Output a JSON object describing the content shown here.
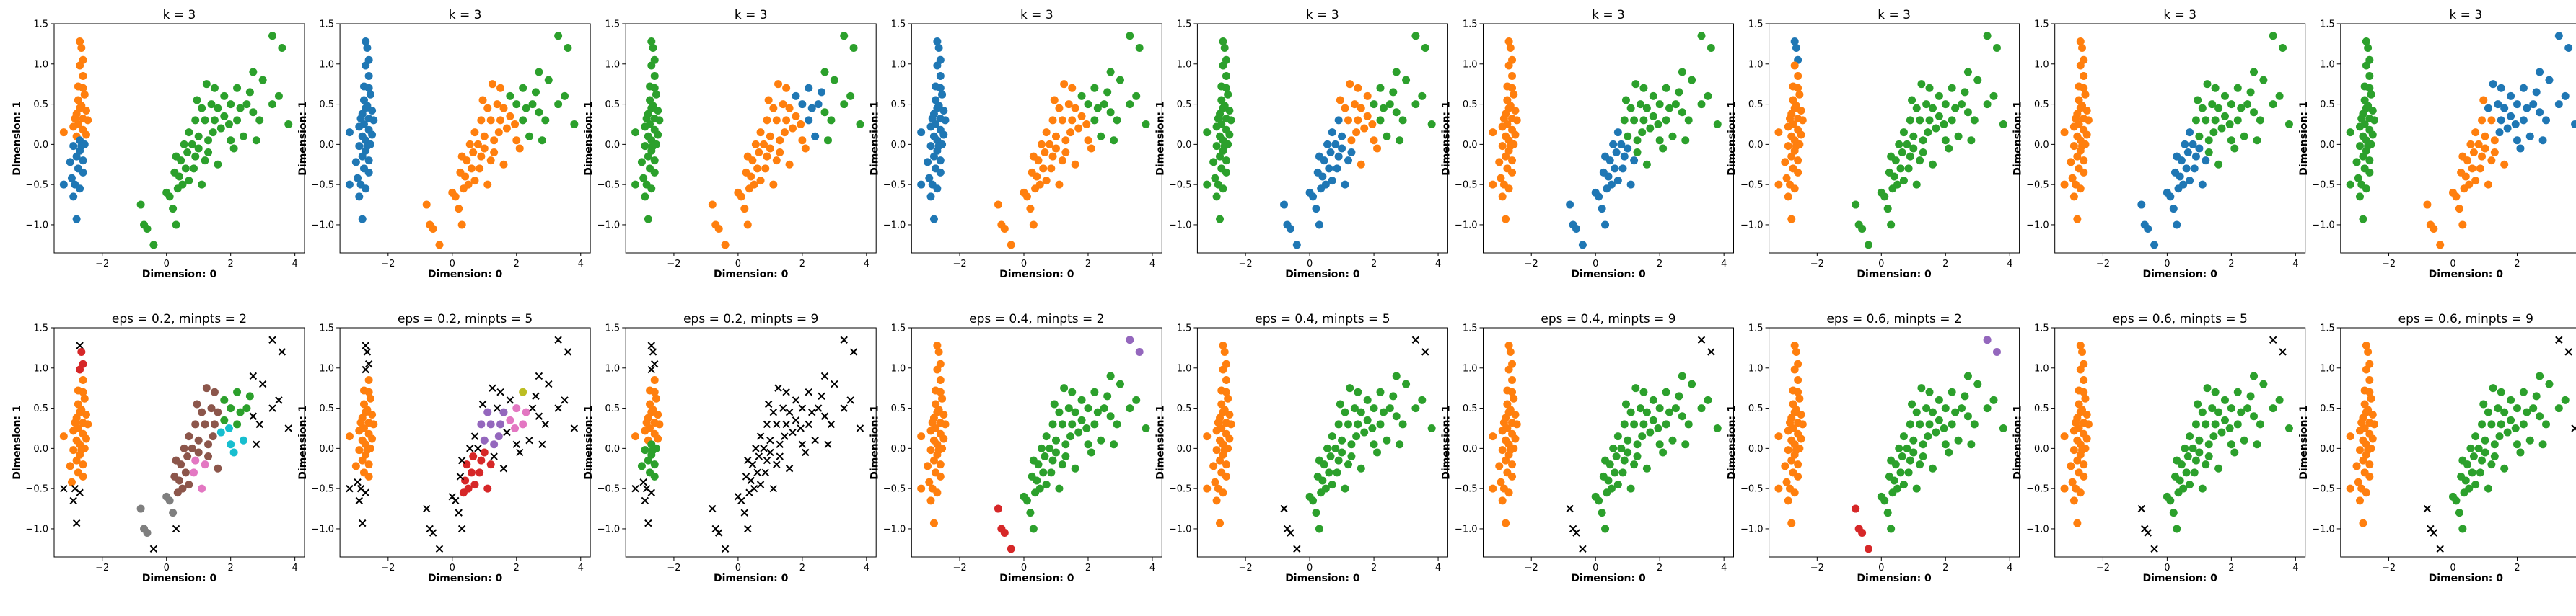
{
  "figure": {
    "xlim": [
      -3.5,
      4.3
    ],
    "ylim": [
      -1.35,
      1.5
    ],
    "xticks": [
      -2,
      0,
      2,
      4
    ],
    "yticks": [
      -1.0,
      -0.5,
      0.0,
      0.5,
      1.0,
      1.5
    ],
    "xlabel": "Dimension: 0",
    "ylabel": "Dimension: 1",
    "colors": {
      "C0": "#1f77b4",
      "C1": "#ff7f0e",
      "C2": "#2ca02c",
      "C3": "#d62728",
      "C4": "#9467bd",
      "C5": "#8c564b",
      "C6": "#e377c2",
      "C7": "#7f7f7f",
      "C8": "#bcbd22",
      "C9": "#17becf",
      "noise": "#000000"
    }
  },
  "chart_data": {
    "type": "scatter",
    "points": [
      [
        -2.7,
        1.28
      ],
      [
        -2.65,
        1.2
      ],
      [
        -2.6,
        1.05
      ],
      [
        -2.7,
        0.98
      ],
      [
        -2.6,
        0.85
      ],
      [
        -2.75,
        0.72
      ],
      [
        -2.6,
        0.7
      ],
      [
        -2.55,
        0.62
      ],
      [
        -2.75,
        0.55
      ],
      [
        -2.65,
        0.48
      ],
      [
        -2.5,
        0.42
      ],
      [
        -2.8,
        0.38
      ],
      [
        -2.6,
        0.32
      ],
      [
        -2.45,
        0.3
      ],
      [
        -2.75,
        0.25
      ],
      [
        -2.9,
        0.22
      ],
      [
        -2.6,
        0.18
      ],
      [
        -2.5,
        0.12
      ],
      [
        -2.8,
        0.1
      ],
      [
        -3.2,
        0.15
      ],
      [
        -2.7,
        0.05
      ],
      [
        -2.55,
        0.0
      ],
      [
        -2.9,
        -0.02
      ],
      [
        -2.7,
        -0.08
      ],
      [
        -2.8,
        -0.15
      ],
      [
        -2.6,
        -0.2
      ],
      [
        -3.0,
        -0.22
      ],
      [
        -2.75,
        -0.3
      ],
      [
        -2.6,
        -0.35
      ],
      [
        -2.95,
        -0.42
      ],
      [
        -3.2,
        -0.5
      ],
      [
        -2.85,
        -0.5
      ],
      [
        -2.7,
        -0.55
      ],
      [
        -2.9,
        -0.65
      ],
      [
        -2.8,
        -0.93
      ],
      [
        -2.7,
        0.45
      ],
      [
        -2.65,
        -0.02
      ],
      [
        -2.85,
        0.32
      ],
      [
        -0.8,
        -0.75
      ],
      [
        -0.7,
        -1.0
      ],
      [
        -0.6,
        -1.05
      ],
      [
        -0.4,
        -1.25
      ],
      [
        0.3,
        -1.0
      ],
      [
        0.2,
        -0.8
      ],
      [
        0.1,
        -0.65
      ],
      [
        0.35,
        -0.55
      ],
      [
        0.5,
        -0.5
      ],
      [
        0.0,
        -0.6
      ],
      [
        0.4,
        -0.4
      ],
      [
        0.7,
        -0.45
      ],
      [
        0.25,
        -0.35
      ],
      [
        0.6,
        -0.3
      ],
      [
        0.85,
        -0.3
      ],
      [
        0.45,
        -0.2
      ],
      [
        0.3,
        -0.15
      ],
      [
        0.65,
        -0.1
      ],
      [
        0.9,
        -0.15
      ],
      [
        0.55,
        0.0
      ],
      [
        0.8,
        0.0
      ],
      [
        1.0,
        -0.05
      ],
      [
        1.2,
        -0.2
      ],
      [
        1.1,
        -0.5
      ],
      [
        0.7,
        0.15
      ],
      [
        1.0,
        0.1
      ],
      [
        1.3,
        0.05
      ],
      [
        1.45,
        0.15
      ],
      [
        0.9,
        0.3
      ],
      [
        1.2,
        0.3
      ],
      [
        1.5,
        0.3
      ],
      [
        1.7,
        0.2
      ],
      [
        1.1,
        0.45
      ],
      [
        1.4,
        0.5
      ],
      [
        1.6,
        0.45
      ],
      [
        1.8,
        0.35
      ],
      [
        1.95,
        0.25
      ],
      [
        2.2,
        0.3
      ],
      [
        2.4,
        0.1
      ],
      [
        2.1,
        -0.05
      ],
      [
        1.8,
        0.6
      ],
      [
        2.0,
        0.5
      ],
      [
        2.3,
        0.45
      ],
      [
        2.5,
        0.5
      ],
      [
        2.7,
        0.4
      ],
      [
        2.2,
        0.7
      ],
      [
        2.6,
        0.65
      ],
      [
        2.9,
        0.3
      ],
      [
        3.3,
        0.5
      ],
      [
        3.0,
        0.8
      ],
      [
        3.5,
        0.6
      ],
      [
        2.7,
        0.9
      ],
      [
        3.3,
        1.35
      ],
      [
        3.6,
        1.2
      ],
      [
        3.8,
        0.25
      ],
      [
        2.8,
        0.05
      ],
      [
        1.5,
        0.7
      ],
      [
        2.0,
        0.05
      ],
      [
        1.3,
        -0.1
      ],
      [
        1.6,
        -0.25
      ],
      [
        0.95,
        0.55
      ],
      [
        1.25,
        0.75
      ]
    ],
    "panels": [
      {
        "title": "k = 3",
        "rules": [
          [
            "x<-2",
            "C1"
          ],
          [
            "x<-2&y<0.1",
            "C0"
          ],
          [
            "x>=-2",
            "C2"
          ]
        ]
      },
      {
        "title": "k = 3",
        "rules": [
          [
            "x<-2",
            "C0"
          ],
          [
            "x>=-2",
            "C1"
          ],
          [
            "x+y>2.3",
            "C2"
          ]
        ]
      },
      {
        "title": "k = 3",
        "rules": [
          [
            "x<-2",
            "C2"
          ],
          [
            "x>=-2",
            "C1"
          ],
          [
            "x+y>2.3",
            "C0"
          ],
          [
            "x>2.6",
            "C2"
          ]
        ]
      },
      {
        "title": "k = 3",
        "rules": [
          [
            "x<-2",
            "C0"
          ],
          [
            "x>=-2",
            "C1"
          ],
          [
            "x+y>2.3",
            "C2"
          ]
        ]
      },
      {
        "title": "k = 3",
        "rules": [
          [
            "x<-2",
            "C2"
          ],
          [
            "x>=-2",
            "C0"
          ],
          [
            "x>=-2&x+y>1.2",
            "C1"
          ],
          [
            "x+y>2.4",
            "C2"
          ]
        ]
      },
      {
        "title": "k = 3",
        "rules": [
          [
            "x<-2",
            "C1"
          ],
          [
            "x>=-2",
            "C0"
          ],
          [
            "x+y>1.0",
            "C2"
          ]
        ]
      },
      {
        "title": "k = 3",
        "rules": [
          [
            "x<-2",
            "C1"
          ],
          [
            "x<-2&y>1.0",
            "C0"
          ],
          [
            "x>=-2",
            "C2"
          ]
        ]
      },
      {
        "title": "k = 3",
        "rules": [
          [
            "x<-2",
            "C1"
          ],
          [
            "x>=-2",
            "C0"
          ],
          [
            "x+y>1.0",
            "C2"
          ]
        ]
      },
      {
        "title": "k = 3",
        "rules": [
          [
            "x<-2",
            "C2"
          ],
          [
            "x>=-2",
            "C1"
          ],
          [
            "x+y>1.5",
            "C0"
          ]
        ]
      },
      {
        "title": "eps = 0.2, minpts = 2",
        "rules": [
          [
            "x<-2",
            "C1"
          ],
          [
            "x<-2&y>0.9",
            "C3"
          ],
          [
            "x<-2&y>1.25",
            "noise"
          ],
          [
            "x<-2&y<-0.45",
            "noise"
          ],
          [
            "x>=-2",
            "C5"
          ],
          [
            "x>=-2&x<0.3&y<-0.5",
            "C7"
          ],
          [
            "x>1.6",
            "C2"
          ],
          [
            "x>1.6&y<0.3",
            "C9"
          ],
          [
            "x>2.6",
            "noise"
          ],
          [
            "x>0.8&x<1.3&y<-0.05",
            "C6"
          ],
          [
            "x>-0.5&x<0.4&y<-0.9",
            "noise"
          ]
        ]
      },
      {
        "title": "eps = 0.2, minpts = 5",
        "rules": [
          [
            "x<-2",
            "C1"
          ],
          [
            "x<-2&y>0.85",
            "noise"
          ],
          [
            "x<-2&y<-0.35",
            "noise"
          ],
          [
            "x>=-2",
            "noise"
          ],
          [
            "x>0.3&x<1.3&y>-0.7&y<0.0",
            "C3"
          ],
          [
            "x>0.8&x<1.7&y>0.0&y<0.5",
            "C4"
          ],
          [
            "x>1.7&x<2.5&y>0.1&y<0.6",
            "C6"
          ],
          [
            "x>1.9&x<2.3&y>0.55",
            "C8"
          ]
        ]
      },
      {
        "title": "eps = 0.2, minpts = 9",
        "rules": [
          [
            "x<-2",
            "C1"
          ],
          [
            "x<-2&y<0.1",
            "C2"
          ],
          [
            "x<-2&y>0.9",
            "noise"
          ],
          [
            "x<-2&y<-0.35",
            "noise"
          ],
          [
            "x>=-2",
            "noise"
          ]
        ]
      },
      {
        "title": "eps = 0.4, minpts = 2",
        "rules": [
          [
            "x<-2",
            "C1"
          ],
          [
            "x>=-2",
            "C2"
          ],
          [
            "x>-1&x<-0.3&y<-0.6",
            "C3"
          ],
          [
            "x>3.1&y>1.0",
            "C4"
          ]
        ]
      },
      {
        "title": "eps = 0.4, minpts = 5",
        "rules": [
          [
            "x<-2",
            "C1"
          ],
          [
            "x>=-2",
            "C2"
          ],
          [
            "x>-1&x<-0.3&y<-0.6",
            "noise"
          ],
          [
            "x>3.2&y>1.0",
            "noise"
          ]
        ]
      },
      {
        "title": "eps = 0.4, minpts = 9",
        "rules": [
          [
            "x<-2",
            "C1"
          ],
          [
            "x>=-2",
            "C2"
          ],
          [
            "x>-1&x<0.0&y<-0.5",
            "noise"
          ],
          [
            "x>3.2&y>1.0",
            "noise"
          ]
        ]
      },
      {
        "title": "eps = 0.6, minpts = 2",
        "rules": [
          [
            "x<-2",
            "C1"
          ],
          [
            "x>=-2",
            "C2"
          ],
          [
            "x>-1&x<-0.3&y<-0.6",
            "C3"
          ],
          [
            "x>3.1&y>1.0",
            "C4"
          ]
        ]
      },
      {
        "title": "eps = 0.6, minpts = 5",
        "rules": [
          [
            "x<-2",
            "C1"
          ],
          [
            "x>=-2",
            "C2"
          ],
          [
            "x>-1&x<-0.3&y<-0.6",
            "noise"
          ],
          [
            "x>3.2&y>1.0",
            "noise"
          ]
        ]
      },
      {
        "title": "eps = 0.6, minpts = 9",
        "rules": [
          [
            "x<-2",
            "C1"
          ],
          [
            "x>=-2",
            "C2"
          ],
          [
            "x>-1&x<-0.3&y<-0.6",
            "noise"
          ],
          [
            "x>3.2&y>1.0",
            "noise"
          ],
          [
            "x>3.7",
            "noise"
          ]
        ]
      }
    ]
  }
}
